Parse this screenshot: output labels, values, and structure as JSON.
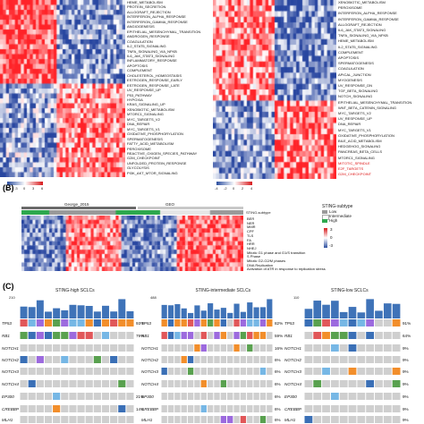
{
  "panel_a": {
    "left_pathways": [
      "HEME_METABOLISM",
      "PROTEIN_SECRETION",
      "ALLOGRAFT_REJECTION",
      "INTERFERON_ALPHA_RESPONSE",
      "INTERFERON_GAMMA_RESPONSE",
      "ANGIOGENESIS",
      "EPITHELIAL_MESENCHYMAL_TRANSITION",
      "ANDROGEN_RESPONSE",
      "COAGULATION",
      "IL2_STAT5_SIGNALING",
      "TNFA_SIGNALING_VIA_NFKB",
      "IL6_JAK_STAT3_SIGNALING",
      "INFLAMMATORY_RESPONSE",
      "APOPTOSIS",
      "COMPLEMENT",
      "CHOLESTEROL_HOMEOSTASIS",
      "ESTROGEN_RESPONSE_EARLY",
      "ESTROGEN_RESPONSE_LATE",
      "UV_RESPONSE_UP",
      "P53_PATHWAY",
      "HYPOXIA",
      "KRAS_SIGNALING_UP",
      "XENOBIOTIC_METABOLISM",
      "MTORC1_SIGNALING",
      "MYC_TARGETS_V2",
      "DNA_REPAIR",
      "MYC_TARGETS_V1",
      "OXIDATIVE_PHOSPHORYLATION",
      "SPERMATOGENESIS",
      "FATTY_ACID_METABOLISM",
      "PEROXISOME",
      "REACTIVE_OXIGEN_SPECIES_PATHWAY",
      "G2M_CHECKPOINT",
      "UNFOLDED_PROTEIN_RESPONSE",
      "GLYCOLYSIS",
      "PI3K_AKT_MTOR_SIGNALING"
    ],
    "right_pathways": [
      "XENOBIOTIC_METABOLISM",
      "PEROXISOME",
      "INTERFERON_ALPHA_RESPONSE",
      "INTERFERON_GAMMA_RESPONSE",
      "ALLOGRAFT_REJECTION",
      "IL6_JAK_STAT3_SIGNALING",
      "TNFA_SIGNALING_VIA_NFKB",
      "HEME_METABOLISM",
      "IL2_STAT5_SIGNALING",
      "COMPLEMENT",
      "APOPTOSIS",
      "SPERMATOGENESIS",
      "COAGULATION",
      "APICAL_JUNCTION",
      "MYOGENESIS",
      "UV_RESPONSE_DN",
      "TGF_BETA_SIGNALING",
      "NOTCH_SIGNALING",
      "EPITHELIAL_MESENCHYMAL_TRANSITION",
      "WNT_BETA_CATENIN_SIGNALING",
      "MYC_TARGETS_V2",
      "UV_RESPONSE_UP",
      "DNA_REPAIR",
      "MYC_TARGETS_V1",
      "OXIDATIVE_PHOSPHORYLATION",
      "BILE_ACID_METABOLISM",
      "HEDGEHOG_SIGNALING",
      "PANCREAS_BETA_CELLS",
      "MTORC1_SIGNALING",
      "MITOTIC_SPINDLE",
      "E2F_TARGETS",
      "G2M_CHECKPOINT"
    ],
    "right_red_labels": [
      "MITOTIC_SPINDLE",
      "E2F_TARGETS",
      "G2M_CHECKPOINT"
    ],
    "left_legend_ticks": [
      "-6",
      "-3",
      "0",
      "3",
      "6"
    ],
    "right_legend_ticks": [
      "-4",
      "-2",
      "0",
      "2",
      "4"
    ]
  },
  "panel_b": {
    "letter": "(B)",
    "cohort_labels": [
      "George_2015",
      "GEO"
    ],
    "row_labels": [
      "BER",
      "NER",
      "MMR",
      "CPF",
      "TLS",
      "FA",
      "HRR",
      "NHEJ",
      "Mitotic G1 phase and G1/S transition",
      "S Phase",
      "Mitotic G2-G2/M phases",
      "DNA Replication",
      "Activation of ATR in response to replication stress"
    ],
    "legend_title": "STING-subtype",
    "legend_items": [
      "Low",
      "Intermediate",
      "High"
    ],
    "legend_ticks": [
      "3",
      "0",
      "-3"
    ],
    "subtype_label": "STING-subtype"
  },
  "panel_c": {
    "letter": "(C)",
    "titles": [
      "STING-high SCLCs",
      "STING-intermediate SCLCs",
      "STING-low SCLCs"
    ],
    "ymax": [
      "210",
      "488",
      "110"
    ],
    "genes": [
      [
        "TP53",
        "RB1",
        "NOTCH1",
        "NOTCH2",
        "NOTCH3",
        "NOTCH4",
        "EP300",
        "CREBBP",
        "MLH1"
      ],
      [
        "TP53",
        "RB1",
        "NOTCH1",
        "NOTCH2",
        "NOTCH3",
        "NOTCH4",
        "EP300",
        "CREBBP",
        "MLH1"
      ],
      [
        "TP53",
        "RB1",
        "NOTCH1",
        "NOTCH2",
        "NOTCH3",
        "NOTCH4",
        "EP300",
        "CREBBP",
        "MLH1"
      ]
    ],
    "pcts": [
      [
        "93%",
        "79%",
        "",
        "",
        "",
        "",
        "21%",
        "14%",
        ""
      ],
      [
        "82%",
        "59%",
        "16%",
        "6%",
        "6%",
        "6%",
        "6%",
        "6%",
        "6%"
      ],
      [
        "91%",
        "64%",
        "9%",
        "9%",
        "9%",
        "9%",
        "9%",
        "9%",
        "9%"
      ]
    ]
  },
  "colors": {
    "red": "#d7191c",
    "blue": "#2c4fa0",
    "green": "#2fa84f",
    "grey": "#9a9a9a",
    "bar": "#3f73b8"
  }
}
